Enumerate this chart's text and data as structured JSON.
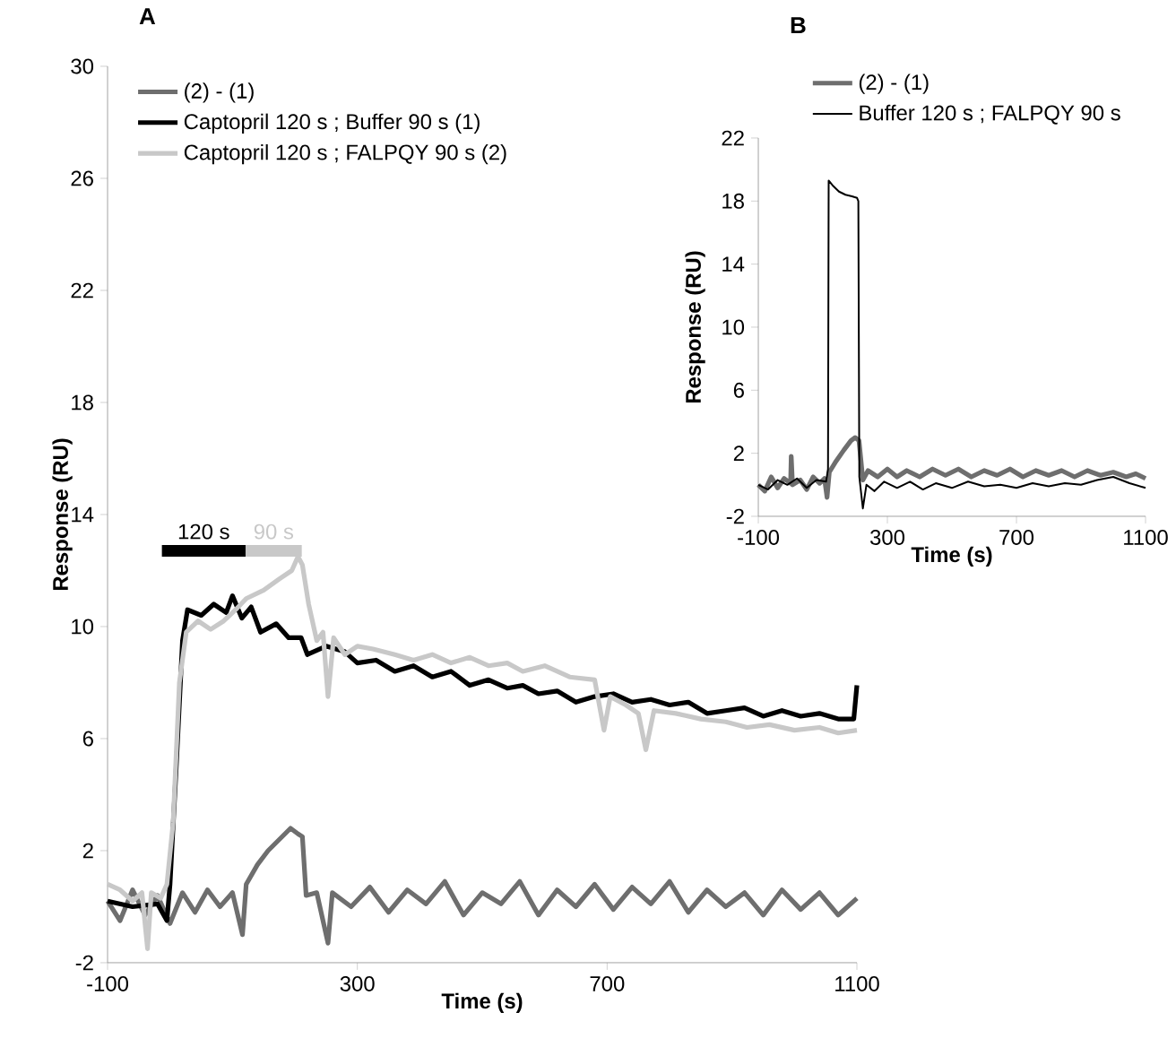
{
  "chart_data": [
    {
      "type": "line",
      "title": "A",
      "xlabel": "Time (s)",
      "ylabel": "Response (RU)",
      "xlim": [
        -100,
        1100
      ],
      "xticks": [
        -100,
        300,
        700,
        1100
      ],
      "ylim": [
        -2,
        30
      ],
      "yticks": [
        -2,
        2,
        6,
        10,
        14,
        18,
        22,
        26,
        30
      ],
      "legend": "top left",
      "grid": false,
      "line_style": "solid",
      "annotations": [
        "120 s",
        "90 s"
      ],
      "series": [
        {
          "name": "(2) - (1)",
          "color": "#6e6e6e",
          "x": [
            -100,
            -80,
            -60,
            -40,
            -20,
            0,
            20,
            40,
            60,
            80,
            100,
            116,
            122,
            140,
            157,
            175,
            193,
            205,
            212,
            218,
            235,
            253,
            260,
            290,
            320,
            350,
            380,
            410,
            440,
            470,
            500,
            530,
            560,
            590,
            620,
            650,
            680,
            710,
            740,
            770,
            800,
            830,
            860,
            890,
            920,
            950,
            980,
            1010,
            1040,
            1070,
            1100
          ],
          "values": [
            0.2,
            -0.5,
            0.6,
            -0.3,
            0.4,
            -0.6,
            0.5,
            -0.2,
            0.6,
            0,
            0.5,
            -1,
            0.8,
            1.5,
            2,
            2.4,
            2.8,
            2.6,
            2.5,
            0.4,
            0.5,
            -1.3,
            0.5,
            0,
            0.7,
            -0.2,
            0.6,
            0.1,
            0.9,
            -0.3,
            0.5,
            0.1,
            0.9,
            -0.3,
            0.6,
            0,
            0.8,
            -0.1,
            0.7,
            0.1,
            0.9,
            -0.2,
            0.6,
            0,
            0.5,
            -0.3,
            0.6,
            -0.1,
            0.5,
            -0.3,
            0.3
          ]
        },
        {
          "name": "Captopril 120 s ; Buffer 90 s (1)",
          "color": "#000000",
          "x": [
            -100,
            -60,
            -20,
            -5,
            0,
            10,
            20,
            28,
            50,
            70,
            90,
            100,
            115,
            130,
            145,
            170,
            190,
            210,
            220,
            250,
            280,
            300,
            330,
            360,
            390,
            420,
            450,
            480,
            510,
            540,
            565,
            590,
            620,
            650,
            680,
            710,
            740,
            770,
            800,
            830,
            860,
            890,
            920,
            950,
            980,
            1010,
            1040,
            1070,
            1095,
            1100
          ],
          "values": [
            0.2,
            0,
            0.1,
            -0.5,
            0.8,
            5,
            9.5,
            10.6,
            10.4,
            10.8,
            10.5,
            11.1,
            10.3,
            10.7,
            9.8,
            10.1,
            9.6,
            9.6,
            9.0,
            9.3,
            9.1,
            8.7,
            8.8,
            8.4,
            8.6,
            8.2,
            8.4,
            7.9,
            8.1,
            7.8,
            7.9,
            7.6,
            7.7,
            7.3,
            7.5,
            7.6,
            7.3,
            7.4,
            7.2,
            7.3,
            6.9,
            7.0,
            7.1,
            6.8,
            7.0,
            6.8,
            6.9,
            6.7,
            6.7,
            7.9
          ]
        },
        {
          "name": "Captopril 120 s ; FALPQY 90 s (2)",
          "color": "#c8c8c8",
          "x": [
            -100,
            -80,
            -60,
            -45,
            -36,
            -30,
            -15,
            -5,
            5,
            15,
            26,
            45,
            65,
            86,
            105,
            122,
            150,
            175,
            195,
            205,
            212,
            222,
            235,
            245,
            253,
            262,
            280,
            300,
            325,
            360,
            390,
            420,
            450,
            480,
            510,
            540,
            565,
            600,
            640,
            680,
            695,
            705,
            730,
            750,
            762,
            775,
            810,
            850,
            890,
            924,
            960,
            1000,
            1040,
            1070,
            1100
          ],
          "values": [
            0.8,
            0.6,
            0.2,
            0.5,
            -1.5,
            0.5,
            0.3,
            0.8,
            3,
            8,
            9.8,
            10.2,
            9.9,
            10.2,
            10.6,
            11,
            11.3,
            11.7,
            12.0,
            12.5,
            12.2,
            10.8,
            9.5,
            9.8,
            7.5,
            9.6,
            9.0,
            9.3,
            9.2,
            9.0,
            8.8,
            9.0,
            8.7,
            8.9,
            8.6,
            8.7,
            8.4,
            8.6,
            8.2,
            8.1,
            6.3,
            7.5,
            7.2,
            6.9,
            5.6,
            7.0,
            6.9,
            6.7,
            6.6,
            6.4,
            6.5,
            6.3,
            6.4,
            6.2,
            6.3
          ]
        },
        {
          "color": "#000000",
          "x": [
            -13,
            121
          ],
          "values": [
            12.7,
            12.7
          ]
        },
        {
          "color": "#c8c8c8",
          "x": [
            121,
            211
          ],
          "values": [
            12.7,
            12.7
          ]
        }
      ]
    },
    {
      "type": "line",
      "title": "B",
      "xlabel": "Time (s)",
      "ylabel": "Response (RU)",
      "xlim": [
        -100,
        1100
      ],
      "xticks": [
        -100,
        300,
        700,
        1100
      ],
      "ylim": [
        -2,
        22
      ],
      "yticks": [
        -2,
        2,
        6,
        10,
        14,
        18,
        22
      ],
      "legend": "top",
      "grid": false,
      "line_style": "solid",
      "series": [
        {
          "name": "(2) - (1)",
          "color": "#6e6e6e",
          "x": [
            -100,
            -80,
            -60,
            -40,
            -20,
            0,
            2,
            6,
            30,
            50,
            70,
            90,
            105,
            113,
            120,
            141,
            165,
            187,
            200,
            212,
            224,
            240,
            270,
            300,
            330,
            360,
            400,
            440,
            480,
            520,
            560,
            600,
            640,
            680,
            720,
            760,
            800,
            840,
            880,
            920,
            960,
            1000,
            1040,
            1070,
            1100
          ],
          "values": [
            0,
            -0.4,
            0.5,
            -0.2,
            0.4,
            0.1,
            1.8,
            0,
            0.3,
            -0.3,
            0.5,
            0.1,
            0.4,
            -0.8,
            0.8,
            1.5,
            2.2,
            2.8,
            3.0,
            2.8,
            0.3,
            0.9,
            0.5,
            1.0,
            0.5,
            0.9,
            0.5,
            1.0,
            0.6,
            1.0,
            0.5,
            0.9,
            0.6,
            1.0,
            0.5,
            0.9,
            0.6,
            0.9,
            0.5,
            0.9,
            0.6,
            0.8,
            0.5,
            0.7,
            0.4
          ]
        },
        {
          "name": "Buffer 120 s ; FALPQY 90 s",
          "color": "#000000",
          "x": [
            -100,
            -70,
            -40,
            -10,
            20,
            50,
            80,
            110,
            116,
            118,
            130,
            150,
            170,
            190,
            206,
            210,
            213,
            224,
            235,
            260,
            290,
            330,
            370,
            410,
            450,
            500,
            550,
            600,
            650,
            700,
            750,
            800,
            850,
            900,
            950,
            1000,
            1050,
            1100
          ],
          "values": [
            0,
            -0.3,
            0.3,
            0,
            0.4,
            -0.2,
            0.3,
            0.2,
            1,
            19.3,
            19.0,
            18.6,
            18.4,
            18.3,
            18.2,
            18.0,
            0.5,
            -1.5,
            0,
            -0.4,
            0.2,
            -0.2,
            0.2,
            -0.3,
            0.1,
            -0.2,
            0.2,
            -0.1,
            0,
            -0.2,
            0.1,
            -0.1,
            0.1,
            0,
            0.3,
            0.5,
            0.1,
            -0.2
          ]
        }
      ]
    }
  ]
}
